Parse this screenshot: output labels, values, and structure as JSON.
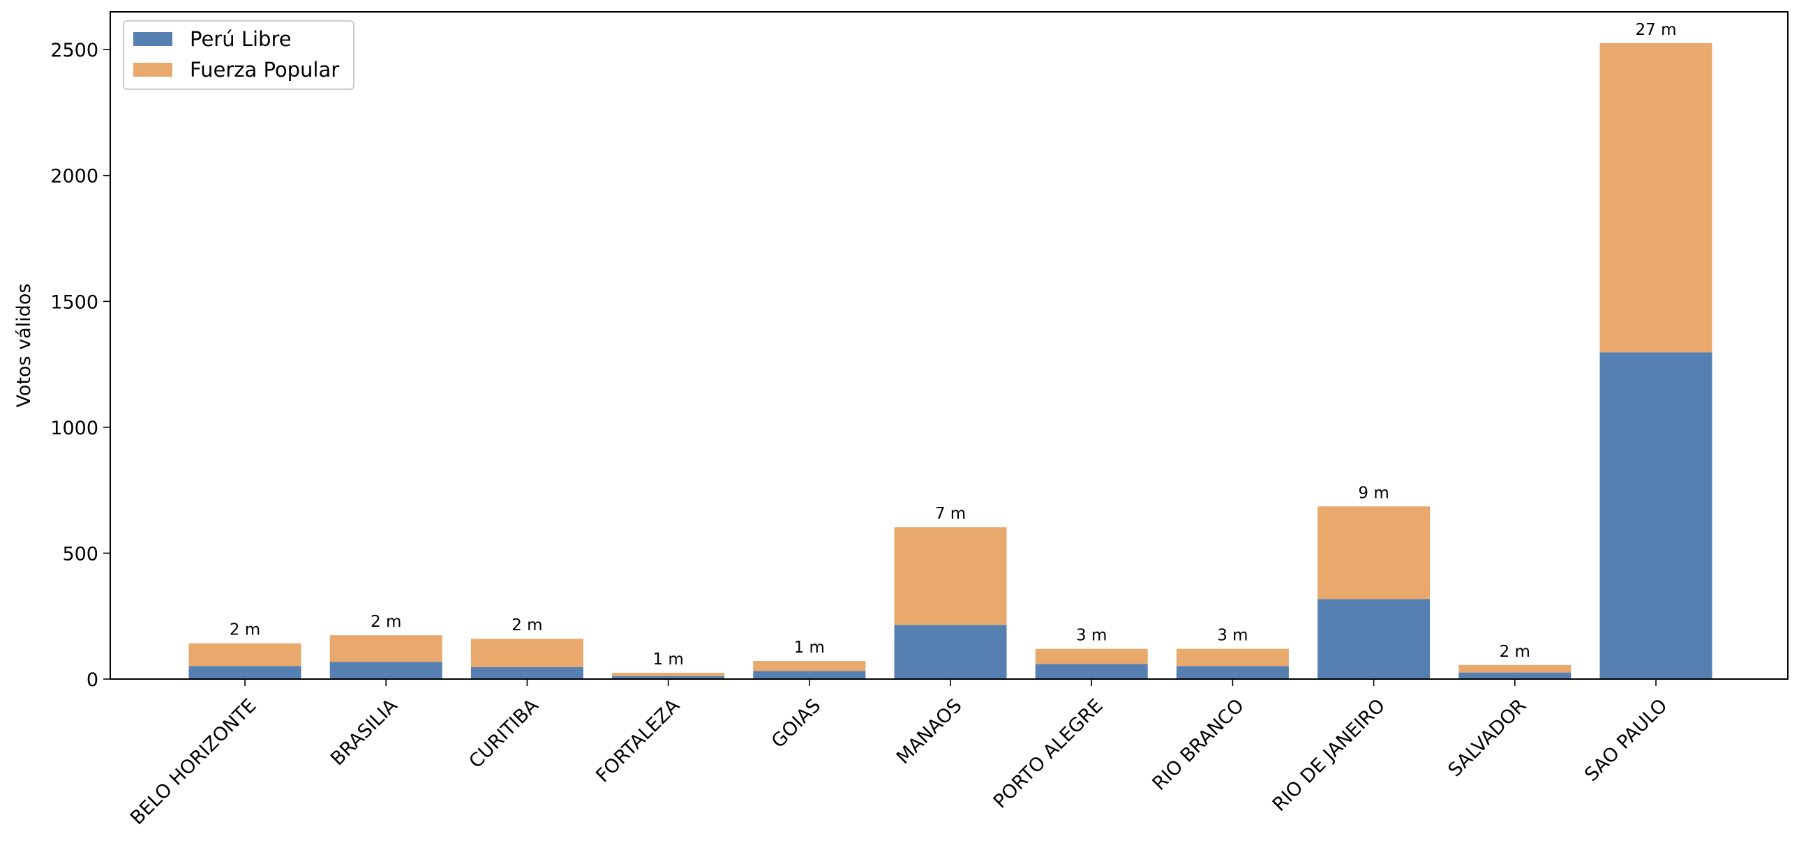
{
  "chart_data": {
    "type": "bar",
    "stacked": true,
    "title": "",
    "xlabel": "",
    "ylabel": "Votos válidos",
    "ylim": [
      0,
      2650
    ],
    "yticks": [
      0,
      500,
      1000,
      1500,
      2000,
      2500
    ],
    "grid": false,
    "legend_position": "top-left",
    "categories": [
      "BELO HORIZONTE",
      "BRASILIA",
      "CURITIBA",
      "FORTALEZA",
      "GOIAS",
      "MANAOS",
      "PORTO ALEGRE",
      "RIO BRANCO",
      "RIO DE JANEIRO",
      "SALVADOR",
      "SAO PAULO"
    ],
    "series": [
      {
        "name": "Perú Libre",
        "color": "#5680b2",
        "values": [
          52,
          68,
          47,
          12,
          32,
          215,
          60,
          52,
          318,
          26,
          1298
        ]
      },
      {
        "name": "Fuerza Popular",
        "color": "#e9a96d",
        "values": [
          90,
          106,
          113,
          13,
          40,
          388,
          60,
          68,
          368,
          30,
          1228
        ]
      }
    ],
    "bar_labels": [
      "2 m",
      "2 m",
      "2 m",
      "1 m",
      "1 m",
      "7 m",
      "3 m",
      "3 m",
      "9 m",
      "2 m",
      "27 m"
    ]
  }
}
